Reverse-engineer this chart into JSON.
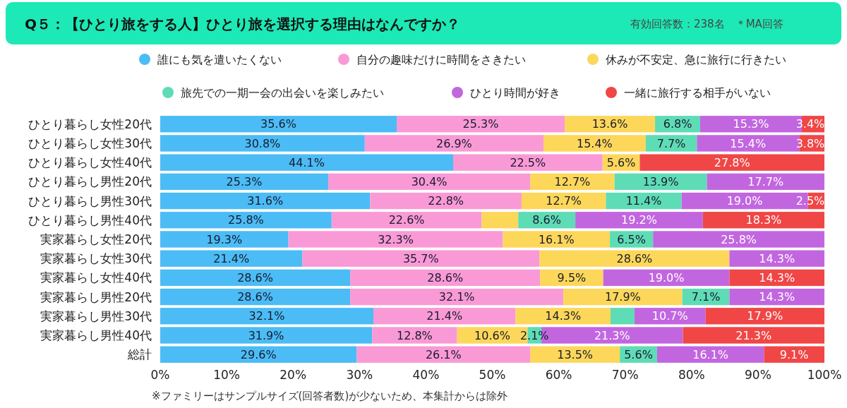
{
  "chart_data": {
    "type": "bar",
    "orientation": "horizontal",
    "stacked": true,
    "title": "Q５：【ひとり旅をする人】ひとり旅を選択する理由はなんですか？",
    "subtitle": "有効回答数：238名　＊MA回答",
    "annotations": [
      "※ファミリーはサンプルサイズ(回答者数)が少ないため、本集計からは除外"
    ],
    "categories": [
      "ひとり暮らし女性20代",
      "ひとり暮らし女性30代",
      "ひとり暮らし女性40代",
      "ひとり暮らし男性20代",
      "ひとり暮らし男性30代",
      "ひとり暮らし男性40代",
      "実家暮らし女性20代",
      "実家暮らし女性30代",
      "実家暮らし女性40代",
      "実家暮らし男性20代",
      "実家暮らし男性30代",
      "実家暮らし男性40代",
      "総計"
    ],
    "xlim": [
      0,
      100
    ],
    "xticks": [
      {
        "value": 0,
        "label": "0%"
      },
      {
        "value": 10,
        "label": "10%"
      },
      {
        "value": 20,
        "label": "20%"
      },
      {
        "value": 30,
        "label": "30%"
      },
      {
        "value": 40,
        "label": "40%"
      },
      {
        "value": 50,
        "label": "50%"
      },
      {
        "value": 60,
        "label": "60%"
      },
      {
        "value": 70,
        "label": "70%"
      },
      {
        "value": 80,
        "label": "80%"
      },
      {
        "value": 90,
        "label": "90%"
      },
      {
        "value": 100,
        "label": "100%"
      }
    ],
    "legend": "top",
    "series": [
      {
        "name": "誰にも気を遣いたくない",
        "color": "#4bbcf5",
        "values": [
          35.6,
          30.8,
          44.1,
          25.3,
          31.6,
          25.8,
          19.3,
          21.4,
          28.6,
          28.6,
          32.1,
          31.9,
          29.6
        ],
        "value_labels": [
          "35.6%",
          "30.8%",
          "44.1%",
          "25.3%",
          "31.6%",
          "25.8%",
          "19.3%",
          "21.4%",
          "28.6%",
          "28.6%",
          "32.1%",
          "31.9%",
          "29.6%"
        ]
      },
      {
        "name": "自分の趣味だけに時間をさきたい",
        "color": "#f99ad6",
        "values": [
          25.3,
          26.9,
          22.5,
          30.4,
          22.8,
          22.6,
          32.3,
          35.7,
          28.6,
          32.1,
          21.4,
          12.8,
          26.1
        ],
        "value_labels": [
          "25.3%",
          "26.9%",
          "22.5%",
          "30.4%",
          "22.8%",
          "22.6%",
          "32.3%",
          "35.7%",
          "28.6%",
          "32.1%",
          "21.4%",
          "12.8%",
          "26.1%"
        ]
      },
      {
        "name": "休みが不安定、急に旅行に行きたい",
        "color": "#fcd75a",
        "values": [
          13.6,
          15.4,
          5.6,
          12.7,
          12.7,
          5.5,
          16.1,
          28.6,
          9.5,
          17.9,
          14.3,
          10.6,
          13.5
        ],
        "value_labels": [
          "13.6%",
          "15.4%",
          "5.6%",
          "12.7%",
          "12.7%",
          null,
          "16.1%",
          "28.6%",
          "9.5%",
          "17.9%",
          "14.3%",
          "10.6%",
          "13.5%"
        ]
      },
      {
        "name": "旅先での一期一会の出会いを楽しみたい",
        "color": "#5edcb6",
        "values": [
          6.8,
          7.7,
          null,
          13.9,
          11.4,
          8.6,
          6.5,
          null,
          null,
          7.1,
          3.6,
          2.1,
          5.6
        ],
        "value_labels": [
          "6.8%",
          "7.7%",
          null,
          "13.9%",
          "11.4%",
          "8.6%",
          "6.5%",
          null,
          null,
          "7.1%",
          null,
          "2.1%",
          "5.6%"
        ]
      },
      {
        "name": "ひとり時間が好き",
        "color": "#c266e0",
        "values": [
          15.3,
          15.4,
          null,
          17.7,
          19.0,
          19.2,
          25.8,
          14.3,
          19.0,
          14.3,
          10.7,
          21.3,
          16.1
        ],
        "value_labels": [
          "15.3%",
          "15.4%",
          null,
          "17.7%",
          "19.0%",
          "19.2%",
          "25.8%",
          "14.3%",
          "19.0%",
          "14.3%",
          "10.7%",
          "21.3%",
          "16.1%"
        ]
      },
      {
        "name": "一緒に旅行する相手がいない",
        "color": "#f04646",
        "values": [
          3.4,
          3.8,
          27.8,
          null,
          2.5,
          18.3,
          null,
          null,
          14.3,
          null,
          17.9,
          21.3,
          9.1
        ],
        "value_labels": [
          "3.4%",
          "3.8%",
          "27.8%",
          null,
          "2.5%",
          "18.3%",
          null,
          null,
          "14.3%",
          null,
          "17.9%",
          "21.3%",
          "9.1%"
        ]
      }
    ]
  }
}
